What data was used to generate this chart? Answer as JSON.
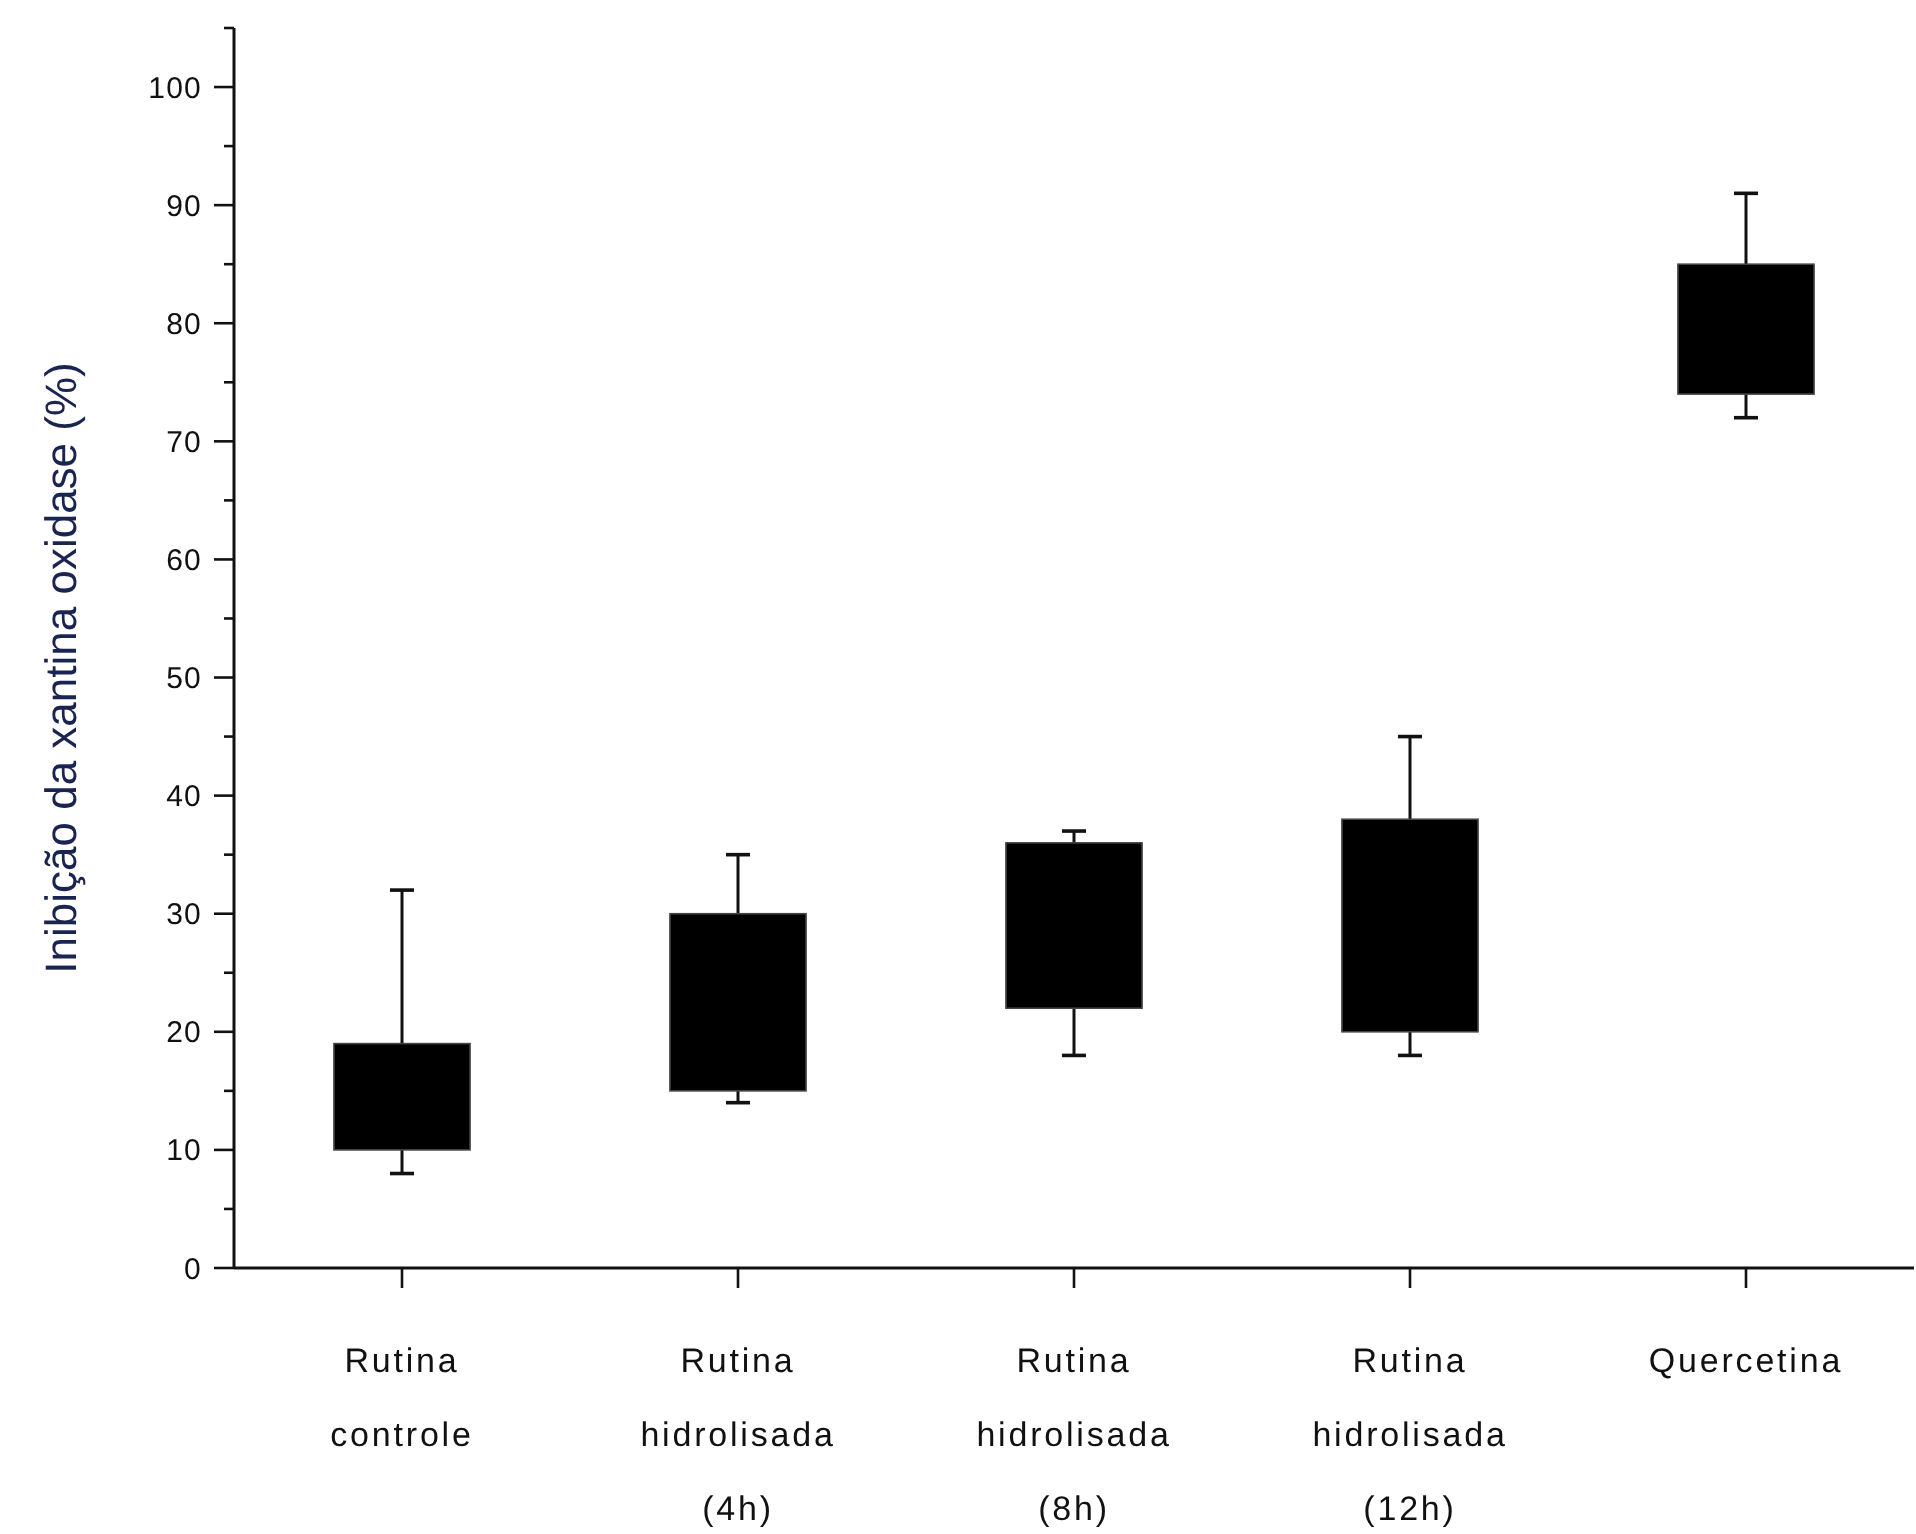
{
  "chart_data": {
    "type": "box",
    "ylabel": "Inibição da xantina oxidase (%)",
    "categories": [
      "Rutina controle",
      "Rutina hidrolisada (4h)",
      "Rutina hidrolisada (8h)",
      "Rutina hidrolisada (12h)",
      "Quercetina"
    ],
    "color": "#000000",
    "boxes": [
      {
        "low": 8,
        "q1": 10,
        "q3": 19,
        "high": 32
      },
      {
        "low": 14,
        "q1": 15,
        "q3": 30,
        "high": 35
      },
      {
        "low": 18,
        "q1": 22,
        "q3": 36,
        "high": 37
      },
      {
        "low": 18,
        "q1": 20,
        "q3": 38,
        "high": 45
      },
      {
        "low": 72,
        "q1": 74,
        "q3": 85,
        "high": 91
      }
    ],
    "ylim": [
      0,
      105
    ],
    "yticks": [
      0,
      {
        "value": 5,
        "label": null
      },
      10,
      {
        "value": 15,
        "label": null
      },
      20,
      {
        "value": 25,
        "label": null
      },
      30,
      {
        "value": 35,
        "label": null
      },
      40,
      {
        "value": 45,
        "label": null
      },
      50,
      {
        "value": 55,
        "label": null
      },
      60,
      {
        "value": 65,
        "label": null
      },
      70,
      {
        "value": 75,
        "label": null
      },
      80,
      {
        "value": 85,
        "label": null
      },
      90,
      {
        "value": 95,
        "label": null
      },
      100,
      {
        "value": 105,
        "label": null
      }
    ]
  }
}
